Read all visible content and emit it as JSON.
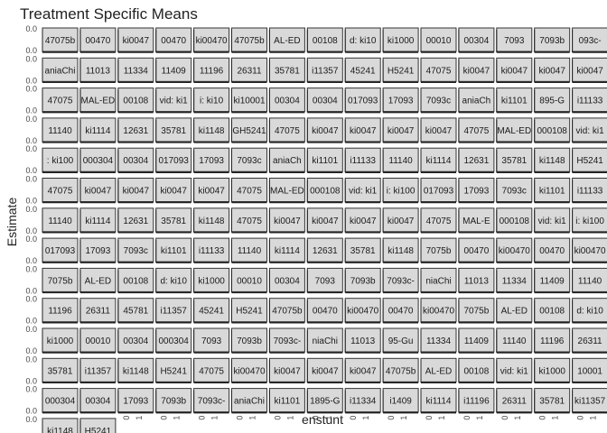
{
  "chart_data": {
    "type": "bar",
    "title": "Treatment Specific Means",
    "xlabel": "enstunt",
    "ylabel": "Estimate",
    "categories": [
      "0",
      "1"
    ],
    "ytick_labels": [
      "0.0",
      "0.5"
    ],
    "ncol": 15,
    "panels": [
      "47075b",
      "00470",
      "ki0047",
      "00470",
      "ki00470",
      "47075b",
      "AL-ED",
      "00108",
      "d: ki10",
      "ki1000",
      "00010",
      "00304",
      "7093",
      "7093b",
      "093c-",
      "aniaChi",
      "11013",
      "11334",
      "11409",
      "11196",
      "26311",
      "35781",
      "i11357",
      "45241",
      "H5241",
      "47075",
      "ki0047",
      "ki0047",
      "ki0047",
      "ki0047",
      "47075",
      "MAL-ED",
      "00108",
      "vid: ki1",
      "i: ki10",
      "ki10001",
      "00304",
      "00304",
      "017093",
      "17093",
      "7093c",
      "aniaCh",
      "ki1101",
      "895-G",
      "i11133",
      "11140",
      "ki1114",
      "12631",
      "35781",
      "ki1148",
      "GH5241",
      "47075",
      "ki0047",
      "ki0047",
      "ki0047",
      "ki0047",
      "47075",
      "MAL-ED",
      "000108",
      "vid: ki1",
      ": ki100",
      "000304",
      "00304",
      "017093",
      "17093",
      "7093c",
      "aniaCh",
      "ki1101",
      "i11133",
      "11140",
      "ki1114",
      "12631",
      "35781",
      "ki1148",
      "H5241",
      "47075",
      "ki0047",
      "ki0047",
      "ki0047",
      "ki0047",
      "47075",
      "MAL-ED",
      "000108",
      "vid: ki1",
      "i: ki100",
      "017093",
      "17093",
      "7093c",
      "ki1101",
      "i11133",
      "11140",
      "ki1114",
      "12631",
      "35781",
      "ki1148",
      "47075",
      "ki0047",
      "ki0047",
      "ki0047",
      "ki0047",
      "47075",
      "MAL-E",
      "000108",
      "vid: ki1",
      "i: ki100",
      "017093",
      "17093",
      "7093c",
      "ki1101",
      "i11133",
      "11140",
      "ki1114",
      "12631",
      "35781",
      "ki1148",
      "7075b",
      "00470",
      "ki00470",
      "00470",
      "ki00470",
      "7075b",
      "AL-ED",
      "00108",
      "d: ki10",
      "ki1000",
      "00010",
      "00304",
      "7093",
      "7093b",
      "7093c-",
      "niaChi",
      "11013",
      "11334",
      "11409",
      "11140",
      "11196",
      "26311",
      "45781",
      "i11357",
      "45241",
      "H5241",
      "47075b",
      "00470",
      "ki00470",
      "00470",
      "ki00470",
      "7075b",
      "AL-ED",
      "00108",
      "d: ki10",
      "ki1000",
      "00010",
      "00304",
      "000304",
      "7093",
      "7093b",
      "7093c-",
      "niaChi",
      "11013",
      "95-Gu",
      "11334",
      "11409",
      "11140",
      "11196",
      "26311",
      "35781",
      "i11357",
      "ki1148",
      "H5241",
      "47075",
      "ki00470",
      "ki0047",
      "ki0047",
      "ki0047",
      "47075b",
      "AL-ED",
      "00108",
      "vid: ki1",
      "ki1000",
      "10001",
      "000304",
      "00304",
      "17093",
      "7093b",
      "7093c-",
      "aniaChi",
      "ki1101",
      "1895-G",
      "i11334",
      "i1409",
      "ki1114",
      "i11196",
      "26311",
      "35781",
      "ki11357",
      "ki1148",
      "H5241"
    ],
    "y_range": [
      0.0,
      0.5
    ],
    "grid": false,
    "legend": "none"
  }
}
